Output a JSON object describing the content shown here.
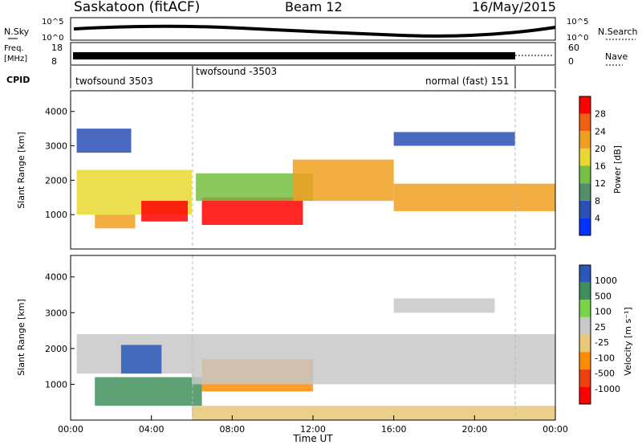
{
  "header": {
    "site": "Saskatoon (fitACF)",
    "beam": "Beam 12",
    "date": "16/May/2015"
  },
  "top_panels": {
    "nsky_label": "N.Sky",
    "nsearch_label": "N.Search",
    "nsky_ticks": [
      "10^5",
      "10^0"
    ],
    "nsky_right_ticks": [
      "10^5",
      "10^0"
    ],
    "freq_label_1": "Freq.",
    "freq_label_2": "[MHz]",
    "freq_ticks": [
      "18",
      "8"
    ],
    "nave_label": "Nave",
    "nave_ticks": [
      "60",
      "0"
    ],
    "cpid_label": "CPID",
    "cpid_segments": [
      {
        "label": "twofsound 3503",
        "start_h": 0.0,
        "end_h": 6.0
      },
      {
        "label": "twofsound -3503",
        "start_h": 6.0,
        "end_h": 22.0
      },
      {
        "label": "normal (fast) 151",
        "start_h": 22.0,
        "end_h": 24.0
      }
    ]
  },
  "colors": {
    "power": [
      "#0033ff",
      "#2a4fb5",
      "#4f8f6a",
      "#77c043",
      "#e8d830",
      "#f0a020",
      "#f06010",
      "#ff0000"
    ],
    "velocity": [
      "#ff0000",
      "#f04010",
      "#ff8c00",
      "#e8c878",
      "#c8c8c8",
      "#7bd34a",
      "#3f8f5a",
      "#2a57b8"
    ]
  },
  "chart_data": [
    {
      "type": "heatmap",
      "name": "power-panel",
      "ylabel": "Slant Range [km]",
      "yticks": [
        "1000",
        "2000",
        "3000",
        "4000"
      ],
      "ylim": [
        0,
        4600
      ],
      "xlim": [
        0,
        24
      ],
      "colorbar_label": "Power [dB]",
      "colorbar_ticks": [
        "28",
        "24",
        "20",
        "16",
        "12",
        "8",
        "4"
      ],
      "colorbar_range": [
        0,
        32
      ],
      "regions": [
        {
          "x0": 0.3,
          "x1": 6,
          "r0": 1000,
          "r1": 2300,
          "level": 4
        },
        {
          "x0": 1.2,
          "x1": 3.2,
          "r0": 600,
          "r1": 1000,
          "level": 5
        },
        {
          "x0": 3.5,
          "x1": 5.8,
          "r0": 800,
          "r1": 1400,
          "level": 7
        },
        {
          "x0": 6.5,
          "x1": 11.5,
          "r0": 700,
          "r1": 1500,
          "level": 7
        },
        {
          "x0": 6.2,
          "x1": 12,
          "r0": 1400,
          "r1": 2200,
          "level": 3
        },
        {
          "x0": 11,
          "x1": 16,
          "r0": 1400,
          "r1": 2600,
          "level": 5
        },
        {
          "x0": 16,
          "x1": 24,
          "r0": 1100,
          "r1": 1900,
          "level": 5
        },
        {
          "x0": 0.3,
          "x1": 3,
          "r0": 2800,
          "r1": 3500,
          "level": 1
        },
        {
          "x0": 16,
          "x1": 22,
          "r0": 3000,
          "r1": 3400,
          "level": 1
        }
      ]
    },
    {
      "type": "heatmap",
      "name": "velocity-panel",
      "ylabel": "Slant Range [km]",
      "yticks": [
        "1000",
        "2000",
        "3000",
        "4000"
      ],
      "ylim": [
        0,
        4600
      ],
      "xlim": [
        0,
        24
      ],
      "xlabel": "Time UT",
      "xticks": [
        "00:00",
        "04:00",
        "08:00",
        "12:00",
        "16:00",
        "20:00",
        "00:00"
      ],
      "colorbar_label": "Velocity [m s⁻¹]",
      "colorbar_ticks": [
        "1000",
        "500",
        "100",
        "25",
        "-25",
        "-100",
        "-500",
        "-1000"
      ],
      "regions": [
        {
          "x0": 0.3,
          "x1": 6,
          "r0": 1300,
          "r1": 2400,
          "level": 4
        },
        {
          "x0": 1.2,
          "x1": 6.5,
          "r0": 400,
          "r1": 1200,
          "level": 6
        },
        {
          "x0": 2.5,
          "x1": 4.5,
          "r0": 1300,
          "r1": 2100,
          "level": 7
        },
        {
          "x0": 6.5,
          "x1": 12,
          "r0": 800,
          "r1": 1700,
          "level": 2
        },
        {
          "x0": 6,
          "x1": 24,
          "r0": 1000,
          "r1": 2400,
          "level": 4
        },
        {
          "x0": 6,
          "x1": 24,
          "r0": 0,
          "r1": 400,
          "level": 3
        },
        {
          "x0": 16,
          "x1": 21,
          "r0": 3000,
          "r1": 3400,
          "level": 4
        }
      ]
    }
  ]
}
